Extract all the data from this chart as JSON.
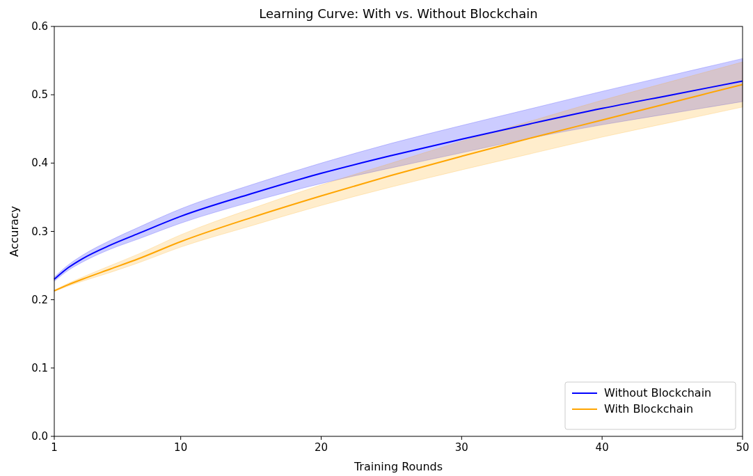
{
  "chart_data": {
    "type": "line",
    "title": "Learning Curve: With vs. Without Blockchain",
    "xlabel": "Training Rounds",
    "ylabel": "Accuracy",
    "x": [
      1,
      2,
      3,
      5,
      7,
      10,
      15,
      20,
      25,
      30,
      35,
      40,
      45,
      50
    ],
    "xlim": [
      1,
      50
    ],
    "xticks": [
      1,
      10,
      20,
      30,
      40,
      50
    ],
    "ylim": [
      0,
      0.6
    ],
    "yticks": [
      {
        "value": 0,
        "label": "0.0"
      },
      0.1,
      0.2,
      0.3,
      0.4,
      0.5,
      0.6
    ],
    "grid": false,
    "legend": "bottom right",
    "marker": "none",
    "line_style": "solid",
    "series": [
      {
        "name": "Without Blockchain",
        "color": "#0000ff",
        "values": [
          0.23,
          0.247,
          0.26,
          0.28,
          0.297,
          0.322,
          0.355,
          0.385,
          0.411,
          0.435,
          0.458,
          0.48,
          0.5,
          0.52
        ],
        "upper": [
          0.233,
          0.251,
          0.265,
          0.287,
          0.306,
          0.333,
          0.368,
          0.4,
          0.429,
          0.455,
          0.48,
          0.505,
          0.529,
          0.553
        ],
        "lower": [
          0.227,
          0.243,
          0.255,
          0.274,
          0.289,
          0.312,
          0.343,
          0.37,
          0.393,
          0.415,
          0.437,
          0.456,
          0.473,
          0.49
        ]
      },
      {
        "name": "With Blockchain",
        "color": "#ffa500",
        "values": [
          0.213,
          0.222,
          0.23,
          0.245,
          0.26,
          0.285,
          0.32,
          0.352,
          0.382,
          0.41,
          0.437,
          0.463,
          0.489,
          0.515
        ],
        "upper": [
          0.214,
          0.224,
          0.233,
          0.25,
          0.267,
          0.295,
          0.333,
          0.368,
          0.4,
          0.432,
          0.462,
          0.492,
          0.52,
          0.548
        ],
        "lower": [
          0.212,
          0.22,
          0.227,
          0.24,
          0.254,
          0.277,
          0.308,
          0.338,
          0.365,
          0.39,
          0.414,
          0.438,
          0.46,
          0.482
        ]
      }
    ]
  }
}
